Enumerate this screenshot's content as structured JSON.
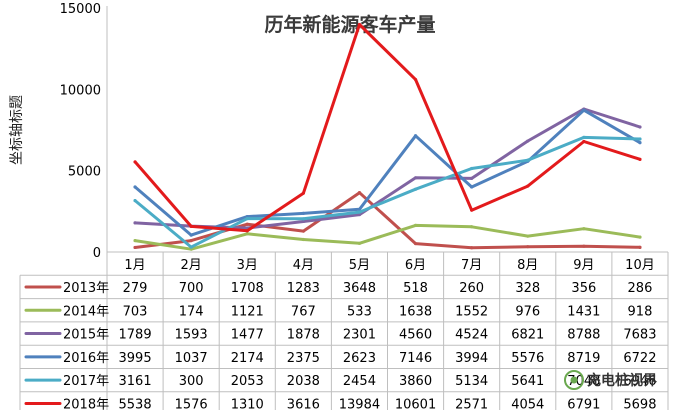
{
  "chart_data": {
    "type": "line",
    "title": "历年新能源客车产量",
    "xlabel": "",
    "ylabel": "坐标轴标题",
    "categories": [
      "1月",
      "2月",
      "3月",
      "4月",
      "5月",
      "6月",
      "7月",
      "8月",
      "9月",
      "10月"
    ],
    "ylim": [
      0,
      15000
    ],
    "yticks": [
      0,
      5000,
      10000,
      15000
    ],
    "ytick_labels": [
      "0",
      "5000",
      "10000",
      "15000"
    ],
    "grid": false,
    "legend": "data-table",
    "series": [
      {
        "name": "2013年",
        "color": "#c0504d",
        "values": [
          279,
          700,
          1708,
          1283,
          3648,
          518,
          260,
          328,
          356,
          286
        ]
      },
      {
        "name": "2014年",
        "color": "#9bbb59",
        "values": [
          703,
          174,
          1121,
          767,
          533,
          1638,
          1552,
          976,
          1431,
          918
        ]
      },
      {
        "name": "2015年",
        "color": "#8064a2",
        "values": [
          1789,
          1593,
          1477,
          1878,
          2301,
          4560,
          4524,
          6821,
          8788,
          7683
        ]
      },
      {
        "name": "2016年",
        "color": "#4f81bd",
        "values": [
          3995,
          1037,
          2174,
          2375,
          2623,
          7146,
          3994,
          5576,
          8719,
          6722
        ]
      },
      {
        "name": "2017年",
        "color": "#4bacc6",
        "values": [
          3161,
          300,
          2053,
          2038,
          2454,
          3860,
          5134,
          5641,
          7048,
          6946
        ]
      },
      {
        "name": "2018年",
        "color": "#e31a1c",
        "values": [
          5538,
          1576,
          1310,
          3616,
          13984,
          10601,
          2571,
          4054,
          6791,
          5698
        ]
      }
    ]
  },
  "watermark": {
    "text": "充电桩视界",
    "colors": {
      "circle": "#6aa84f"
    }
  }
}
